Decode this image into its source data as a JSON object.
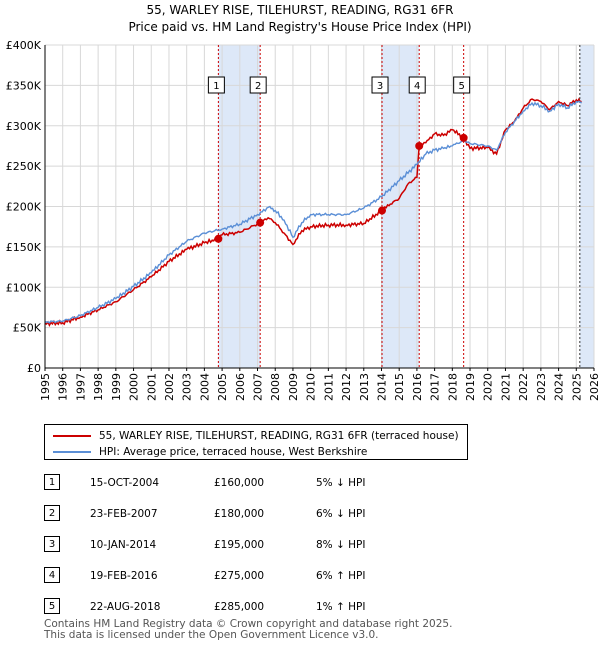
{
  "chart_data": {
    "type": "line",
    "title": "55, WARLEY RISE, TILEHURST, READING, RG31 6FR",
    "subtitle": "Price paid vs. HM Land Registry's House Price Index (HPI)",
    "xlabel": "",
    "ylabel": "",
    "xlim": [
      1995,
      2026
    ],
    "ylim": [
      0,
      400000
    ],
    "x_ticks": [
      "1995",
      "1996",
      "1997",
      "1998",
      "1999",
      "2000",
      "2001",
      "2002",
      "2003",
      "2004",
      "2005",
      "2006",
      "2007",
      "2008",
      "2009",
      "2010",
      "2011",
      "2012",
      "2013",
      "2014",
      "2015",
      "2016",
      "2017",
      "2018",
      "2019",
      "2020",
      "2021",
      "2022",
      "2023",
      "2024",
      "2025",
      "2026"
    ],
    "y_ticks": [
      {
        "value": 0,
        "label": "£0"
      },
      {
        "value": 50000,
        "label": "£50K"
      },
      {
        "value": 100000,
        "label": "£100K"
      },
      {
        "value": 150000,
        "label": "£150K"
      },
      {
        "value": 200000,
        "label": "£200K"
      },
      {
        "value": 250000,
        "label": "£250K"
      },
      {
        "value": 300000,
        "label": "£300K"
      },
      {
        "value": 350000,
        "label": "£350K"
      },
      {
        "value": 400000,
        "label": "£400K"
      }
    ],
    "grid": true,
    "series": [
      {
        "name": "55, WARLEY RISE, TILEHURST, READING, RG31 6FR (terraced house)",
        "color": "#cc0000",
        "x": [
          1995,
          1996,
          1997,
          1998,
          1999,
          2000,
          2001,
          2002,
          2003,
          2004,
          2004.79,
          2005,
          2006,
          2007.15,
          2007.6,
          2008,
          2008.5,
          2009,
          2009.5,
          2010,
          2011,
          2012,
          2013,
          2014.03,
          2014.5,
          2015,
          2015.5,
          2016.0,
          2016.13,
          2016.5,
          2017,
          2017.5,
          2018,
          2018.64,
          2019,
          2020,
          2020.5,
          2021,
          2021.5,
          2022,
          2022.5,
          2023,
          2023.5,
          2024,
          2024.5,
          2025,
          2025.3
        ],
        "y": [
          55000,
          56000,
          63000,
          72000,
          82000,
          97000,
          113000,
          132000,
          147000,
          155000,
          160000,
          165000,
          168000,
          180000,
          186000,
          180000,
          167000,
          153000,
          170000,
          175000,
          177000,
          177000,
          179000,
          195000,
          203000,
          210000,
          228000,
          236000,
          275000,
          279000,
          290000,
          288000,
          295000,
          285000,
          272000,
          273000,
          265000,
          295000,
          305000,
          322000,
          333000,
          330000,
          320000,
          330000,
          325000,
          332000,
          330000
        ]
      },
      {
        "name": "HPI: Average price, terraced house, West Berkshire",
        "color": "#5b8fd6",
        "x": [
          1995,
          1996,
          1997,
          1998,
          1999,
          2000,
          2001,
          2002,
          2003,
          2004,
          2005,
          2006,
          2007,
          2007.7,
          2008,
          2008.5,
          2009,
          2009.5,
          2010,
          2011,
          2012,
          2013,
          2014,
          2015,
          2016,
          2016.5,
          2017,
          2017.5,
          2018,
          2018.64,
          2019,
          2020,
          2020.5,
          2021,
          2021.5,
          2022,
          2022.5,
          2023,
          2023.5,
          2024,
          2024.5,
          2025,
          2025.3
        ],
        "y": [
          57000,
          58000,
          65000,
          75000,
          86000,
          101000,
          118000,
          140000,
          157000,
          167000,
          172000,
          178000,
          190000,
          200000,
          195000,
          183000,
          162000,
          180000,
          190000,
          190000,
          190000,
          198000,
          212000,
          232000,
          252000,
          265000,
          270000,
          272000,
          275000,
          282000,
          278000,
          275000,
          270000,
          292000,
          305000,
          318000,
          328000,
          325000,
          318000,
          327000,
          322000,
          330000,
          328000
        ]
      }
    ],
    "sales_markers": [
      {
        "label": "1",
        "x": 2004.79,
        "y": 160000
      },
      {
        "label": "2",
        "x": 2007.15,
        "y": 180000
      },
      {
        "label": "3",
        "x": 2014.03,
        "y": 195000
      },
      {
        "label": "4",
        "x": 2016.13,
        "y": 275000
      },
      {
        "label": "5",
        "x": 2018.64,
        "y": 285000
      }
    ],
    "shaded_ranges": [
      [
        2004.79,
        2007.15
      ],
      [
        2014.03,
        2016.13
      ],
      [
        2025.2,
        2026
      ]
    ],
    "colors": {
      "price": "#cc0000",
      "hpi": "#5b8fd6",
      "shade": "#dde8f8",
      "grid": "#d8d8d8",
      "vline": "#cc0000"
    }
  },
  "legend": {
    "price_label": "55, WARLEY RISE, TILEHURST, READING, RG31 6FR (terraced house)",
    "hpi_label": "HPI: Average price, terraced house, West Berkshire"
  },
  "sales": [
    {
      "num": "1",
      "date": "15-OCT-2004",
      "price": "£160,000",
      "hpi": "5% ↓ HPI"
    },
    {
      "num": "2",
      "date": "23-FEB-2007",
      "price": "£180,000",
      "hpi": "6% ↓ HPI"
    },
    {
      "num": "3",
      "date": "10-JAN-2014",
      "price": "£195,000",
      "hpi": "8% ↓ HPI"
    },
    {
      "num": "4",
      "date": "19-FEB-2016",
      "price": "£275,000",
      "hpi": "6% ↑ HPI"
    },
    {
      "num": "5",
      "date": "22-AUG-2018",
      "price": "£285,000",
      "hpi": "1% ↑ HPI"
    }
  ],
  "footer": {
    "line1": "Contains HM Land Registry data © Crown copyright and database right 2025.",
    "line2": "This data is licensed under the Open Government Licence v3.0."
  }
}
